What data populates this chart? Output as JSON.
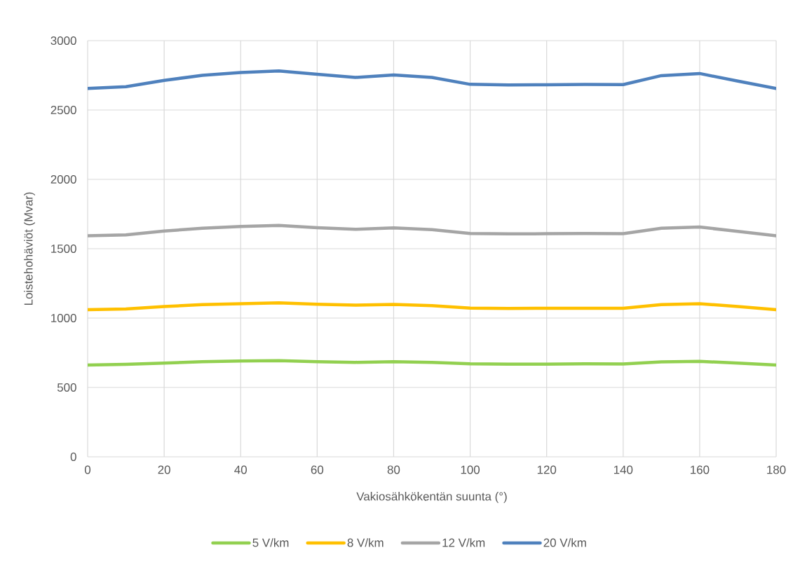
{
  "chart_data": {
    "type": "line",
    "xlabel": "Vakiosähkökentän suunta (°)",
    "ylabel": "Loistehohäviöt (Mvar)",
    "x": [
      0,
      10,
      20,
      30,
      40,
      50,
      60,
      70,
      80,
      90,
      100,
      110,
      120,
      130,
      140,
      150,
      160,
      170,
      180
    ],
    "series": [
      {
        "name": "5 V/km",
        "color": "#92d050",
        "values": [
          662,
          666,
          676,
          685,
          690,
          693,
          686,
          681,
          685,
          680,
          670,
          668,
          668,
          670,
          669,
          684,
          688,
          675,
          662
        ]
      },
      {
        "name": "8 V/km",
        "color": "#ffc000",
        "values": [
          1060,
          1065,
          1083,
          1097,
          1104,
          1110,
          1100,
          1093,
          1098,
          1090,
          1072,
          1070,
          1071,
          1071,
          1071,
          1097,
          1104,
          1083,
          1060
        ]
      },
      {
        "name": "12 V/km",
        "color": "#a5a5a5",
        "values": [
          1593,
          1600,
          1627,
          1648,
          1660,
          1668,
          1652,
          1640,
          1650,
          1638,
          1610,
          1607,
          1608,
          1610,
          1608,
          1648,
          1656,
          1625,
          1593
        ]
      },
      {
        "name": "20 V/km",
        "color": "#4f81bd",
        "values": [
          2655,
          2668,
          2713,
          2750,
          2770,
          2782,
          2757,
          2735,
          2752,
          2735,
          2685,
          2680,
          2682,
          2684,
          2683,
          2748,
          2763,
          2708,
          2655
        ]
      }
    ],
    "xlim": [
      0,
      180
    ],
    "ylim": [
      0,
      3000
    ],
    "xticks": [
      0,
      20,
      40,
      60,
      80,
      100,
      120,
      140,
      160,
      180
    ],
    "yticks": [
      0,
      500,
      1000,
      1500,
      2000,
      2500,
      3000
    ],
    "grid": true,
    "legend": "bottom"
  }
}
